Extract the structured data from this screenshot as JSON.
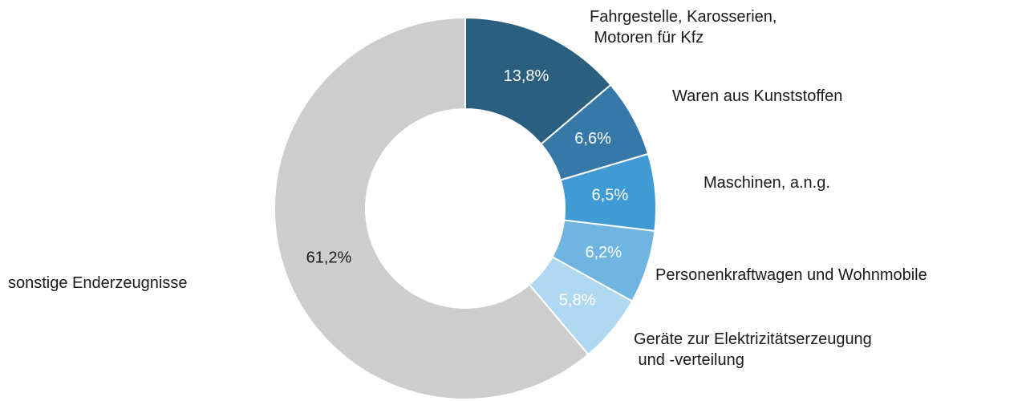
{
  "chart_data": {
    "type": "donut",
    "categories": [
      "Fahrgestelle, Karosserien,\n Motoren für Kfz",
      "Waren aus Kunststoffen",
      "Maschinen, a.n.g.",
      "Personenkraftwagen und Wohnmobile",
      "Geräte zur Elektrizitätserzeugung\n und -verteilung",
      "sonstige Enderzeugnisse"
    ],
    "values": [
      13.8,
      6.6,
      6.5,
      6.2,
      5.8,
      61.2
    ],
    "value_labels": [
      "13,8%",
      "6,6%",
      "6,5%",
      "6,2%",
      "5,8%",
      "61,2%"
    ],
    "colors": [
      "#2b5f80",
      "#3679a8",
      "#409bd5",
      "#70b5e0",
      "#b0d8f1",
      "#cdcdcd"
    ]
  }
}
